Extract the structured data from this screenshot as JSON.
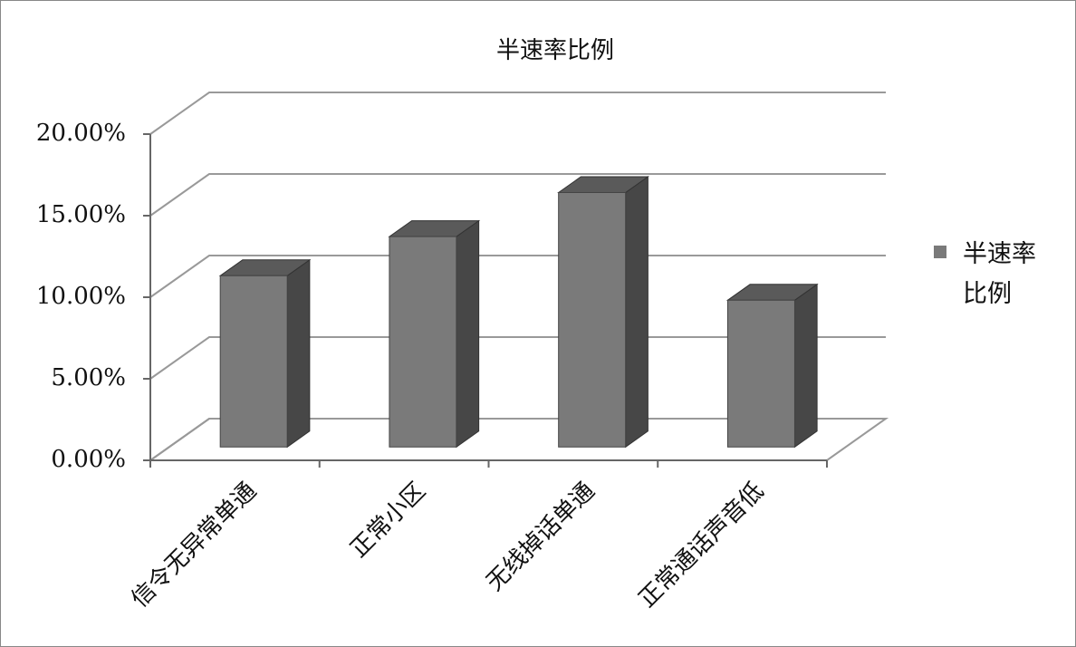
{
  "chart_data": {
    "type": "bar3d",
    "title": "半速率比例",
    "categories": [
      "信令无异常单通",
      "正常小区",
      "无线掉话单通",
      "正常通话声音低"
    ],
    "series": [
      {
        "name": "半速率比例",
        "color": "#7a7a7a",
        "values": [
          10.5,
          12.9,
          15.6,
          9.0
        ]
      }
    ],
    "ylim": [
      0,
      20
    ],
    "yticks": [
      {
        "value": 0,
        "label": "0.00%"
      },
      {
        "value": 5,
        "label": "5.00%"
      },
      {
        "value": 10,
        "label": "10.00%"
      },
      {
        "value": 15,
        "label": "15.00%"
      },
      {
        "value": 20,
        "label": "20.00%"
      }
    ],
    "grid": true,
    "legend": "right"
  }
}
